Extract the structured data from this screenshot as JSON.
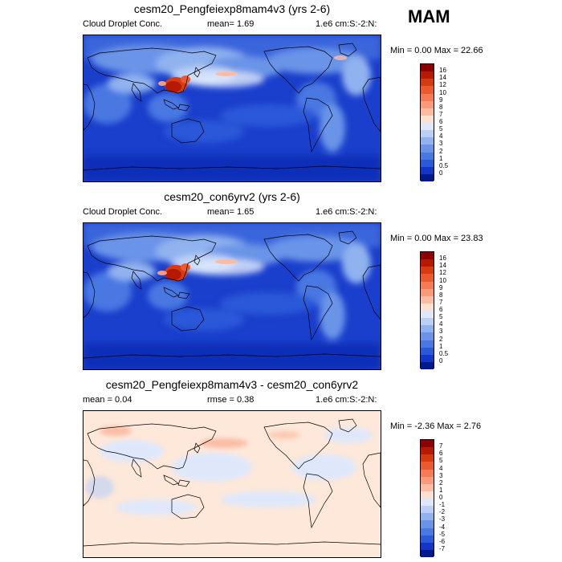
{
  "season": "MAM",
  "panels": [
    {
      "title": "cesm20_Pengfeiexp8mam4v3 (yrs 2-6)",
      "left_label": "Cloud Droplet Conc.",
      "center_label": "mean=   1.69",
      "right_label": "1.e6 cm:S:-2:N:",
      "minmax": "Min =   0.00 Max =  22.66",
      "colorbar_labels": [
        "16",
        "14",
        "12",
        "10",
        "9",
        "8",
        "7",
        "6",
        "5",
        "4",
        "3",
        "2",
        "1",
        "0.5",
        "0"
      ]
    },
    {
      "title": "cesm20_con6yrv2 (yrs 2-6)",
      "left_label": "Cloud Droplet Conc.",
      "center_label": "mean=   1.65",
      "right_label": "1.e6 cm:S:-2:N:",
      "minmax": "Min =   0.00 Max =  23.83",
      "colorbar_labels": [
        "16",
        "14",
        "12",
        "10",
        "9",
        "8",
        "7",
        "6",
        "5",
        "4",
        "3",
        "2",
        "1",
        "0.5",
        "0"
      ]
    },
    {
      "title": "cesm20_Pengfeiexp8mam4v3 - cesm20_con6yrv2",
      "left_label": "mean =   0.04",
      "center_label": "rmse =   0.38",
      "right_label": "1.e6 cm:S:-2:N:",
      "minmax": "Min =  -2.36 Max =   2.76",
      "colorbar_labels": [
        "7",
        "6",
        "5",
        "4",
        "3",
        "2",
        "1",
        "0",
        "-1",
        "-2",
        "-3",
        "-4",
        "-5",
        "-6",
        "-7"
      ]
    }
  ],
  "colors": {
    "abs_scale": [
      "#8b0000",
      "#b51a00",
      "#d63a10",
      "#ea5a2e",
      "#f47b55",
      "#f99a7a",
      "#fcbca2",
      "#fde0d0",
      "#dfe8fb",
      "#b9cff6",
      "#90b2ef",
      "#6b94e8",
      "#4a78e2",
      "#2c59d8",
      "#1336c6",
      "#001a8e"
    ],
    "diff_scale": [
      "#8b0000",
      "#b51a00",
      "#d63a10",
      "#ea5a2e",
      "#f47b55",
      "#f99a7a",
      "#fcbca2",
      "#fde0d0",
      "#dfe8fb",
      "#b9cff6",
      "#90b2ef",
      "#6b94e8",
      "#4a78e2",
      "#2c59d8",
      "#1336c6",
      "#001a8e"
    ],
    "ocean_base": "#1e46d2",
    "diff_base": "#fde8da"
  }
}
